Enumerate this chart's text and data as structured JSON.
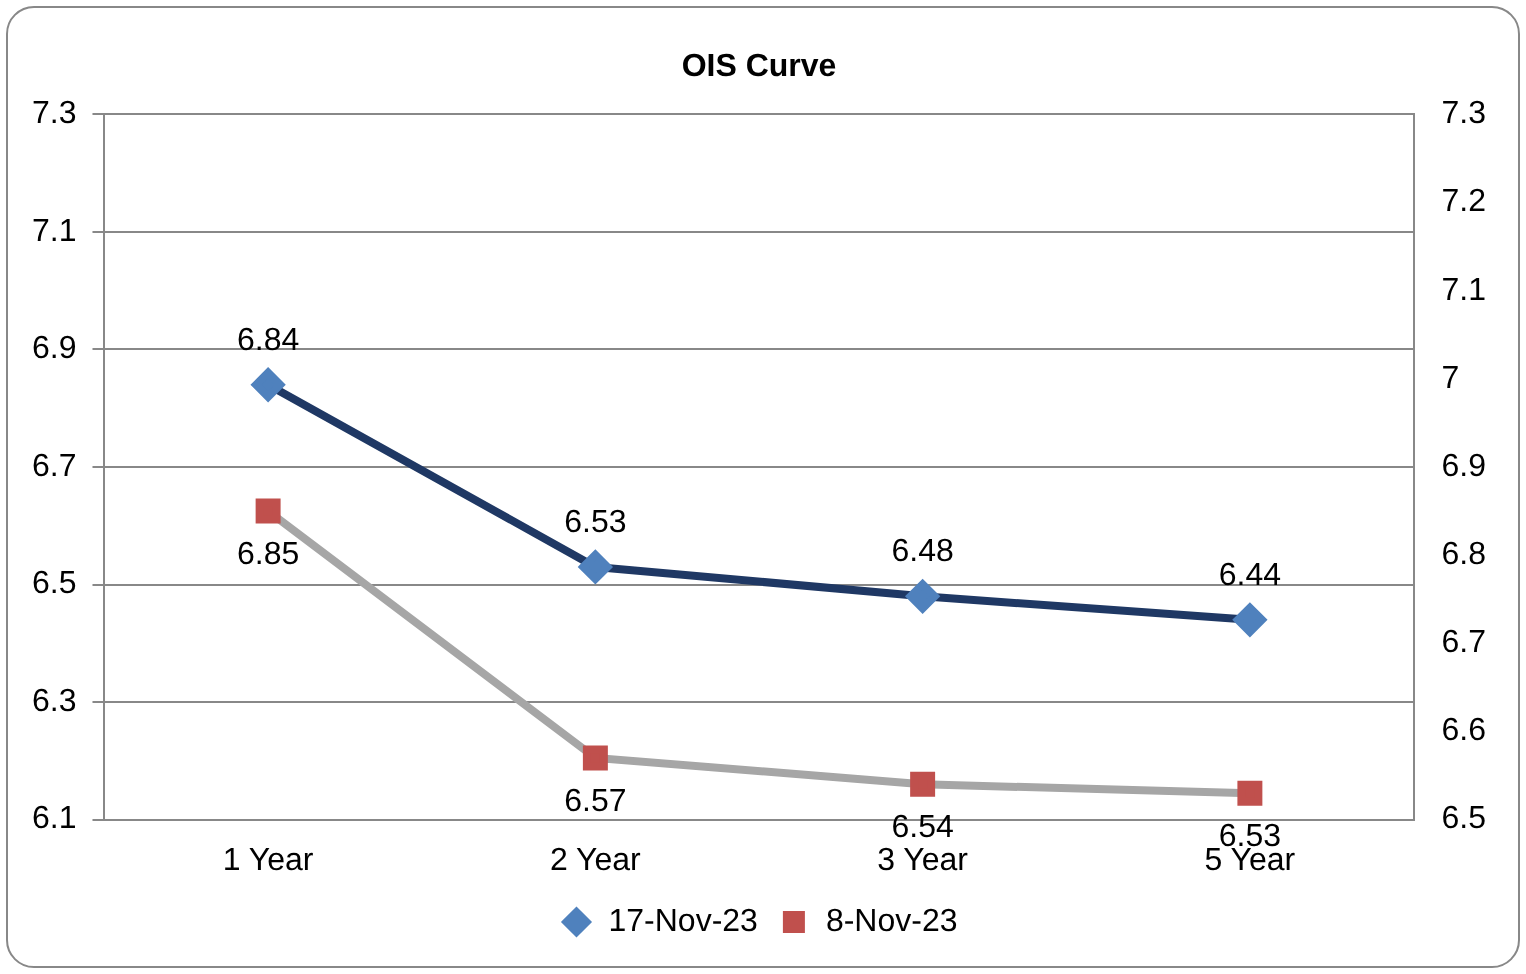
{
  "chart_data": {
    "type": "line",
    "title": "OIS Curve",
    "categories": [
      "1 Year",
      "2 Year",
      "3 Year",
      "5 Year"
    ],
    "series": [
      {
        "name": "17-Nov-23",
        "color": "#1f3864",
        "colors": [
          "#4f81bd",
          "#4f81bd",
          "#4f81bd",
          "#4f81bd"
        ],
        "marker": "diamond",
        "values": [
          6.84,
          6.53,
          6.48,
          6.44
        ]
      },
      {
        "name": "8-Nov-23",
        "color": "#a6a6a6",
        "colors": [
          "#c0504d",
          "#c0504d",
          "#c0504d",
          "#c0504d"
        ],
        "marker": "square",
        "axis": "y2",
        "values": [
          6.85,
          6.57,
          6.54,
          6.53
        ]
      }
    ],
    "ylim": [
      6.1,
      7.3
    ],
    "yticks": [
      {
        "value": 6.1,
        "label": "6.1"
      },
      {
        "value": 6.3,
        "label": "6.3"
      },
      {
        "value": 6.5,
        "label": "6.5"
      },
      {
        "value": 6.7,
        "label": "6.7"
      },
      {
        "value": 6.9,
        "label": "6.9"
      },
      {
        "value": 7.1,
        "label": "7.1"
      },
      {
        "value": 7.3,
        "label": "7.3"
      }
    ],
    "y2lim": [
      6.5,
      7.3
    ],
    "y2ticks": [
      {
        "value": 6.5,
        "label": "6.5"
      },
      {
        "value": 6.6,
        "label": "6.6"
      },
      {
        "value": 6.7,
        "label": "6.7"
      },
      {
        "value": 6.8,
        "label": "6.8"
      },
      {
        "value": 6.9,
        "label": "6.9"
      },
      {
        "value": 7,
        "label": "7"
      },
      {
        "value": 7.1,
        "label": "7.1"
      },
      {
        "value": 7.2,
        "label": "7.2"
      },
      {
        "value": 7.3,
        "label": "7.3"
      }
    ],
    "grid": "y",
    "legend": "bottom",
    "data_labels": true,
    "line_style": "solid"
  }
}
